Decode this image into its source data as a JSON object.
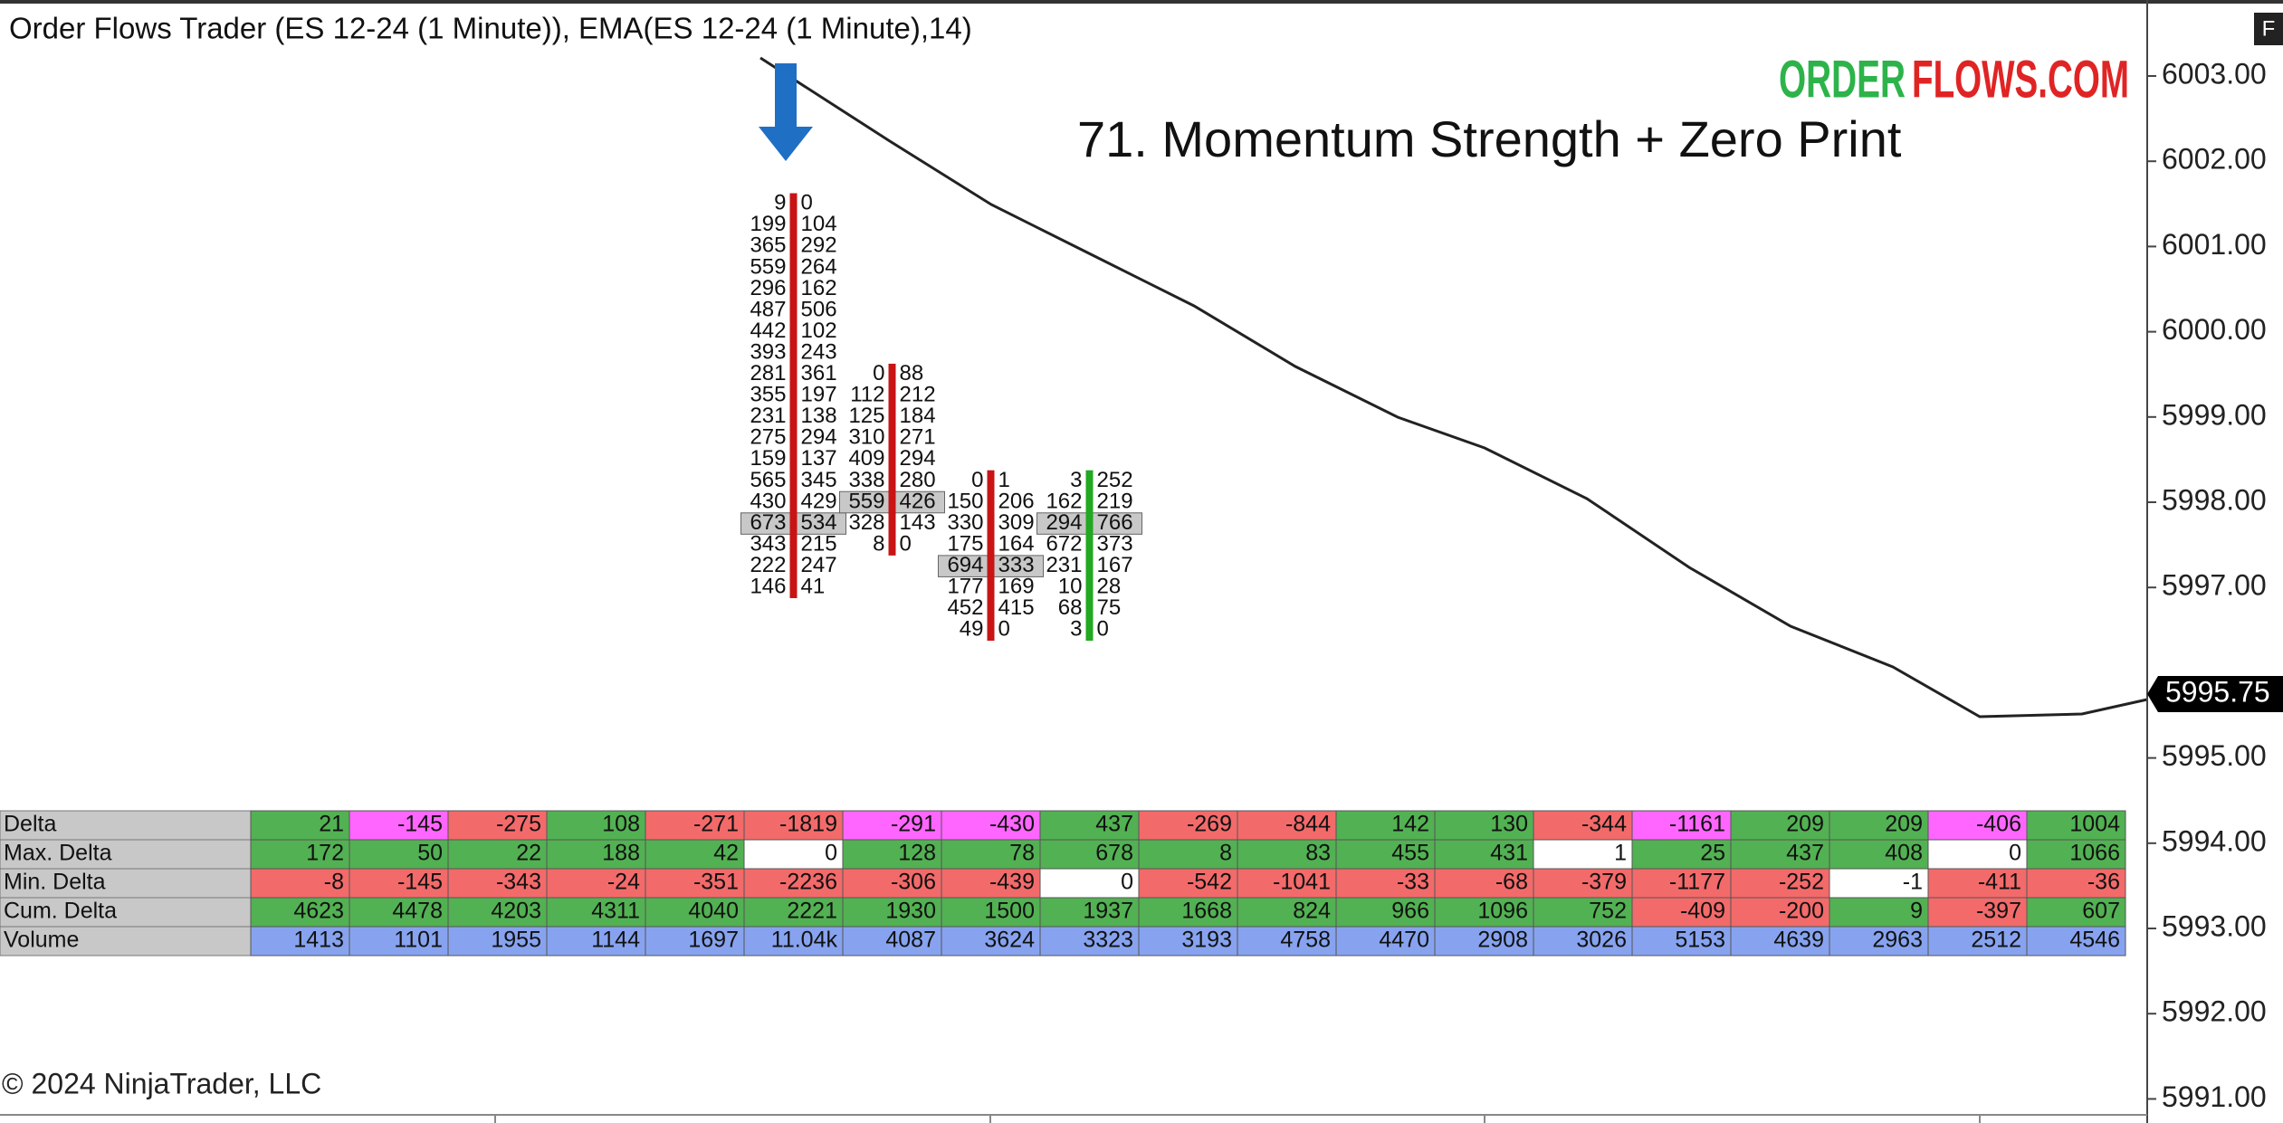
{
  "header": {
    "title": "Order Flows Trader (ES 12-24 (1 Minute)), EMA(ES 12-24 (1 Minute),14)",
    "brand_left": "ORDER",
    "brand_right": "FLOWS.COM",
    "annotation": "71. Momentum Strength + Zero Print",
    "copyright": "© 2024 NinjaTrader, LLC",
    "corner": "F"
  },
  "price_axis": {
    "ticks": [
      {
        "value": 6003,
        "label": "6003.00"
      },
      {
        "value": 6002,
        "label": "6002.00"
      },
      {
        "value": 6001,
        "label": "6001.00"
      },
      {
        "value": 6000,
        "label": "6000.00"
      },
      {
        "value": 5999,
        "label": "5999.00"
      },
      {
        "value": 5998,
        "label": "5998.00"
      },
      {
        "value": 5997,
        "label": "5997.00"
      },
      {
        "value": 5995,
        "label": "5995.00"
      },
      {
        "value": 5994,
        "label": "5994.00"
      },
      {
        "value": 5993,
        "label": "5993.00"
      },
      {
        "value": 5992,
        "label": "5992.00"
      },
      {
        "value": 5991,
        "label": "5991.00"
      }
    ],
    "last_price": {
      "value": 5995.75,
      "label": "5995.75"
    }
  },
  "footprint": {
    "columns": [
      null,
      null,
      null,
      null,
      null,
      {
        "high": 6001.5,
        "bid": [
          9,
          199,
          365,
          559,
          296,
          487,
          442,
          393,
          281,
          355,
          231,
          275,
          159,
          565,
          430,
          673,
          343,
          222,
          146
        ],
        "ask": [
          0,
          104,
          292,
          264,
          162,
          506,
          102,
          243,
          361,
          197,
          138,
          294,
          137,
          345,
          429,
          534,
          215,
          247,
          41
        ],
        "poc": 15
      },
      {
        "high": 5999.5,
        "bid": [
          0,
          112,
          125,
          310,
          409,
          338,
          559,
          328,
          8
        ],
        "ask": [
          88,
          212,
          184,
          271,
          294,
          280,
          426,
          143,
          0
        ],
        "poc": 6
      },
      {
        "high": 5998.25,
        "bid": [
          0,
          150,
          330,
          175,
          694,
          177,
          452,
          49
        ],
        "ask": [
          1,
          206,
          309,
          164,
          333,
          169,
          415,
          0
        ],
        "poc": 4
      },
      {
        "high": 5998.25,
        "bid": [
          3,
          162,
          294,
          672,
          231,
          10,
          68,
          3
        ],
        "ask": [
          252,
          219,
          766,
          373,
          167,
          28,
          75,
          0
        ],
        "poc": 2
      },
      null,
      null,
      null,
      null,
      null,
      null,
      null,
      null,
      null,
      null
    ]
  },
  "table": {
    "labels": [
      "Delta",
      "Max. Delta",
      "Min. Delta",
      "Cum. Delta",
      "Volume"
    ],
    "rows": [
      {
        "values": [
          21,
          -145,
          -275,
          108,
          -271,
          -1819,
          -291,
          -430,
          437,
          -269,
          -844,
          142,
          130,
          -344,
          -1161,
          209,
          209,
          -406,
          1004
        ],
        "colors": [
          "#52b152",
          "#ff66ff",
          "#f36a6a",
          "#52b152",
          "#f36a6a",
          "#f36a6a",
          "#ff66ff",
          "#ff66ff",
          "#52b152",
          "#f36a6a",
          "#f36a6a",
          "#52b152",
          "#52b152",
          "#f36a6a",
          "#ff66ff",
          "#52b152",
          "#52b152",
          "#ff66ff",
          "#52b152"
        ]
      },
      {
        "values": [
          172,
          50,
          22,
          188,
          42,
          0,
          128,
          78,
          678,
          8,
          83,
          455,
          431,
          1,
          25,
          437,
          408,
          0,
          1066
        ],
        "colors": [
          "#52b152",
          "#52b152",
          "#52b152",
          "#52b152",
          "#52b152",
          "#ffffff",
          "#52b152",
          "#52b152",
          "#52b152",
          "#52b152",
          "#52b152",
          "#52b152",
          "#52b152",
          "#ffffff",
          "#52b152",
          "#52b152",
          "#52b152",
          "#ffffff",
          "#52b152"
        ]
      },
      {
        "values": [
          -8,
          -145,
          -343,
          -24,
          -351,
          -2236,
          -306,
          -439,
          0,
          -542,
          -1041,
          -33,
          -68,
          -379,
          -1177,
          -252,
          -1,
          -411,
          -36
        ],
        "colors": [
          "#f36a6a",
          "#f36a6a",
          "#f36a6a",
          "#f36a6a",
          "#f36a6a",
          "#f36a6a",
          "#f36a6a",
          "#f36a6a",
          "#ffffff",
          "#f36a6a",
          "#f36a6a",
          "#f36a6a",
          "#f36a6a",
          "#f36a6a",
          "#f36a6a",
          "#f36a6a",
          "#ffffff",
          "#f36a6a",
          "#f36a6a"
        ]
      },
      {
        "values": [
          4623,
          4478,
          4203,
          4311,
          4040,
          2221,
          1930,
          1500,
          1937,
          1668,
          824,
          966,
          1096,
          752,
          -409,
          -200,
          9,
          -397,
          607
        ],
        "colors": [
          "#52b152",
          "#52b152",
          "#52b152",
          "#52b152",
          "#52b152",
          "#52b152",
          "#52b152",
          "#52b152",
          "#52b152",
          "#52b152",
          "#52b152",
          "#52b152",
          "#52b152",
          "#52b152",
          "#f36a6a",
          "#f36a6a",
          "#52b152",
          "#f36a6a",
          "#52b152"
        ]
      },
      {
        "values": [
          1413,
          1101,
          1955,
          1144,
          1697,
          "11.04k",
          4087,
          3624,
          3323,
          3193,
          4758,
          4470,
          2908,
          3026,
          5153,
          4639,
          2963,
          2512,
          4546
        ],
        "colors": [
          "#87a3ef",
          "#87a3ef",
          "#87a3ef",
          "#87a3ef",
          "#87a3ef",
          "#87a3ef",
          "#87a3ef",
          "#87a3ef",
          "#87a3ef",
          "#87a3ef",
          "#87a3ef",
          "#87a3ef",
          "#87a3ef",
          "#87a3ef",
          "#87a3ef",
          "#87a3ef",
          "#87a3ef",
          "#87a3ef",
          "#87a3ef"
        ]
      }
    ]
  }
}
